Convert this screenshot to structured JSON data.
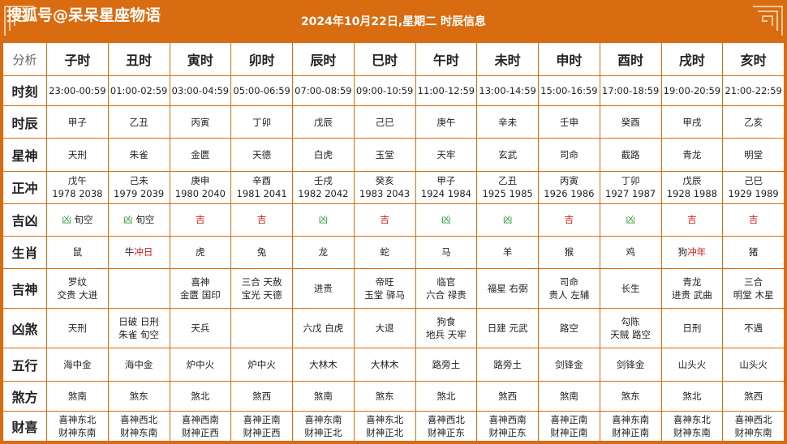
{
  "header": {
    "brand": "搜狐号@呆呆星座物语",
    "title": "2024年10月22日,星期二 时辰信息"
  },
  "table": {
    "corner": "分析",
    "columns": [
      "子时",
      "丑时",
      "寅时",
      "卯时",
      "辰时",
      "巳时",
      "午时",
      "未时",
      "申时",
      "酉时",
      "戌时",
      "亥时"
    ],
    "rows": {
      "shike": {
        "label": "时刻",
        "cells": [
          "23:00-00:59",
          "01:00-02:59",
          "03:00-04:59",
          "05:00-06:59",
          "07:00-08:59",
          "09:00-10:59",
          "11:00-12:59",
          "13:00-14:59",
          "15:00-16:59",
          "17:00-18:59",
          "19:00-20:59",
          "21:00-22:59"
        ]
      },
      "shichen": {
        "label": "时辰",
        "cells": [
          "甲子",
          "乙丑",
          "丙寅",
          "丁卯",
          "戊辰",
          "己巳",
          "庚午",
          "辛未",
          "壬申",
          "癸酉",
          "甲戌",
          "乙亥"
        ]
      },
      "xingshen": {
        "label": "星神",
        "cells": [
          "天刑",
          "朱雀",
          "金匮",
          "天德",
          "白虎",
          "玉堂",
          "天牢",
          "玄武",
          "司命",
          "截路",
          "青龙",
          "明堂"
        ]
      },
      "zhengchong": {
        "label": "正冲",
        "cells": [
          [
            "戊午",
            "1978 2038"
          ],
          [
            "己未",
            "1979 2039"
          ],
          [
            "庚申",
            "1980 2040"
          ],
          [
            "辛酉",
            "1981 2041"
          ],
          [
            "壬戌",
            "1982 2042"
          ],
          [
            "癸亥",
            "1983 2043"
          ],
          [
            "甲子",
            "1924 1984"
          ],
          [
            "乙丑",
            "1925 1985"
          ],
          [
            "丙寅",
            "1926 1986"
          ],
          [
            "丁卯",
            "1927 1987"
          ],
          [
            "戊辰",
            "1928 1988"
          ],
          [
            "己巳",
            "1929 1989"
          ]
        ]
      },
      "jixiong": {
        "label": "吉凶",
        "cells": [
          {
            "mark": "凶",
            "extra": "旬空",
            "color": "#2e9a3a"
          },
          {
            "mark": "凶",
            "extra": "旬空",
            "color": "#2e9a3a"
          },
          {
            "mark": "吉",
            "extra": "",
            "color": "#d11a1a"
          },
          {
            "mark": "吉",
            "extra": "",
            "color": "#d11a1a"
          },
          {
            "mark": "凶",
            "extra": "",
            "color": "#2e9a3a"
          },
          {
            "mark": "吉",
            "extra": "",
            "color": "#d11a1a"
          },
          {
            "mark": "凶",
            "extra": "",
            "color": "#2e9a3a"
          },
          {
            "mark": "凶",
            "extra": "",
            "color": "#2e9a3a"
          },
          {
            "mark": "吉",
            "extra": "",
            "color": "#d11a1a"
          },
          {
            "mark": "凶",
            "extra": "",
            "color": "#2e9a3a"
          },
          {
            "mark": "吉",
            "extra": "",
            "color": "#d11a1a"
          },
          {
            "mark": "吉",
            "extra": "",
            "color": "#d11a1a"
          }
        ]
      },
      "shengxiao": {
        "label": "生肖",
        "cells": [
          {
            "animal": "鼠",
            "note": ""
          },
          {
            "animal": "牛",
            "note": "冲日"
          },
          {
            "animal": "虎",
            "note": ""
          },
          {
            "animal": "兔",
            "note": ""
          },
          {
            "animal": "龙",
            "note": ""
          },
          {
            "animal": "蛇",
            "note": ""
          },
          {
            "animal": "马",
            "note": ""
          },
          {
            "animal": "羊",
            "note": ""
          },
          {
            "animal": "猴",
            "note": ""
          },
          {
            "animal": "鸡",
            "note": ""
          },
          {
            "animal": "狗",
            "note": "冲年"
          },
          {
            "animal": "猪",
            "note": ""
          }
        ]
      },
      "jishen": {
        "label": "吉神",
        "cells": [
          [
            "罗纹",
            "交贵 大进"
          ],
          [],
          [
            "喜神",
            "金匮 国印"
          ],
          [
            "三合 天赦",
            "宝光 天德"
          ],
          [
            "进贵"
          ],
          [
            "帝旺",
            "玉堂 驿马"
          ],
          [
            "临官",
            "六合 禄贵"
          ],
          [
            "福星 右弼"
          ],
          [
            "司命",
            "贵人 左辅"
          ],
          [
            "长生"
          ],
          [
            "青龙",
            "进贵 武曲"
          ],
          [
            "三合",
            "明堂 木星"
          ]
        ]
      },
      "xiongsha": {
        "label": "凶煞",
        "cells": [
          [
            "天刑"
          ],
          [
            "日破 日刑",
            "朱雀 旬空"
          ],
          [
            "天兵"
          ],
          [],
          [
            "六戊 白虎"
          ],
          [
            "大退"
          ],
          [
            "狗食",
            "地兵 天牢"
          ],
          [
            "日建 元武"
          ],
          [
            "路空"
          ],
          [
            "勾陈",
            "天贼 路空"
          ],
          [
            "日刑"
          ],
          [
            "不遇"
          ]
        ]
      },
      "wuxing": {
        "label": "五行",
        "cells": [
          "海中金",
          "海中金",
          "炉中火",
          "炉中火",
          "大林木",
          "大林木",
          "路旁土",
          "路旁土",
          "剑锋金",
          "剑锋金",
          "山头火",
          "山头火"
        ]
      },
      "shafang": {
        "label": "煞方",
        "cells": [
          "煞南",
          "煞东",
          "煞北",
          "煞西",
          "煞南",
          "煞东",
          "煞北",
          "煞西",
          "煞南",
          "煞东",
          "煞北",
          "煞西"
        ]
      },
      "caixi": {
        "label": "财喜",
        "cells": [
          [
            "喜神东北",
            "财神东南"
          ],
          [
            "喜神西北",
            "财神东南"
          ],
          [
            "喜神西南",
            "财神正西"
          ],
          [
            "喜神正南",
            "财神正西"
          ],
          [
            "喜神东南",
            "财神正北"
          ],
          [
            "喜神东北",
            "财神正北"
          ],
          [
            "喜神西北",
            "财神正东"
          ],
          [
            "喜神西南",
            "财神正东"
          ],
          [
            "喜神正南",
            "财神正南"
          ],
          [
            "喜神东南",
            "财神正南"
          ],
          [
            "喜神东北",
            "财神东南"
          ],
          [
            "喜神西北",
            "财神东南"
          ]
        ]
      }
    }
  }
}
